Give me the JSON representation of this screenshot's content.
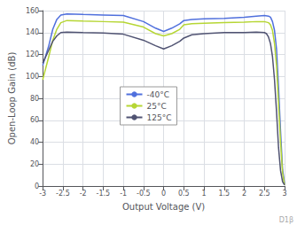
{
  "chart_data": {
    "type": "line",
    "xlabel": "Output Voltage (V)",
    "ylabel": "Open-Loop Gain (dB)",
    "xlim": [
      -3,
      3
    ],
    "ylim": [
      0,
      160
    ],
    "xticks": [
      -3,
      -2.5,
      -2,
      -1.5,
      -1,
      -0.5,
      0,
      0.5,
      1,
      1.5,
      2,
      2.5,
      3
    ],
    "yticks": [
      0,
      20,
      40,
      60,
      80,
      100,
      120,
      140,
      160
    ],
    "grid": true,
    "legend": "center",
    "annotations": [
      "D1β"
    ],
    "series": [
      {
        "name": "-40°C",
        "x": [
          -3.0,
          -2.85,
          -2.75,
          -2.65,
          -2.55,
          -2.4,
          -2.0,
          -1.5,
          -1.0,
          -0.5,
          -0.2,
          0.0,
          0.2,
          0.4,
          0.5,
          0.7,
          1.0,
          1.5,
          2.0,
          2.3,
          2.5,
          2.6,
          2.65,
          2.7,
          2.75,
          2.8,
          2.85,
          2.9,
          2.95,
          3.0
        ],
        "values": [
          110,
          128,
          143,
          152,
          156,
          157,
          156.5,
          156,
          155.5,
          150,
          144,
          141,
          144,
          148,
          151,
          152,
          152.5,
          153,
          154,
          155,
          155.5,
          155,
          154,
          150,
          142,
          125,
          90,
          50,
          15,
          2
        ]
      },
      {
        "name": "25°C",
        "x": [
          -3.0,
          -2.85,
          -2.75,
          -2.65,
          -2.55,
          -2.4,
          -2.0,
          -1.5,
          -1.0,
          -0.5,
          -0.2,
          0.0,
          0.2,
          0.4,
          0.5,
          0.7,
          1.0,
          1.5,
          2.0,
          2.3,
          2.5,
          2.6,
          2.65,
          2.7,
          2.75,
          2.8,
          2.85,
          2.9,
          2.95,
          3.0
        ],
        "values": [
          97,
          118,
          133,
          143,
          149,
          151,
          150.5,
          150,
          149.5,
          145,
          139,
          137,
          139,
          143,
          147,
          148,
          148.5,
          149,
          149.5,
          150,
          150,
          149,
          147,
          142,
          130,
          110,
          75,
          40,
          12,
          1
        ]
      },
      {
        "name": "125°C",
        "x": [
          -3.0,
          -2.85,
          -2.75,
          -2.65,
          -2.55,
          -2.4,
          -2.0,
          -1.5,
          -1.0,
          -0.5,
          -0.2,
          0.0,
          0.2,
          0.4,
          0.5,
          0.7,
          1.0,
          1.5,
          2.0,
          2.3,
          2.5,
          2.55,
          2.6,
          2.65,
          2.7,
          2.75,
          2.8,
          2.85,
          2.9,
          2.95,
          3.0
        ],
        "values": [
          112,
          124,
          132,
          137,
          140,
          140.5,
          140,
          139.5,
          138.5,
          133,
          128,
          125,
          128,
          132,
          135,
          138,
          139,
          140,
          140,
          140.5,
          140,
          139,
          136,
          130,
          118,
          97,
          68,
          35,
          14,
          4,
          1
        ]
      }
    ]
  }
}
